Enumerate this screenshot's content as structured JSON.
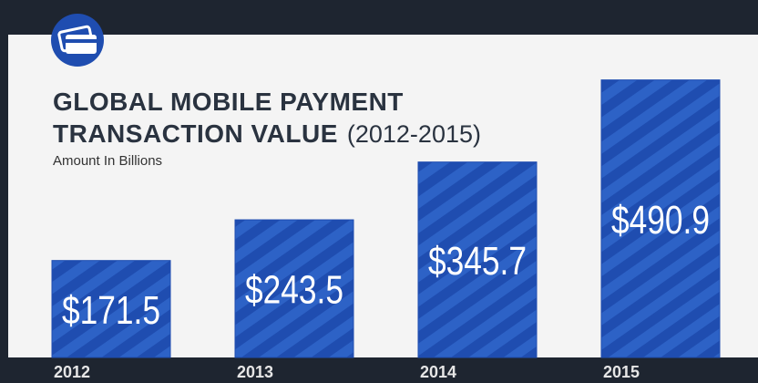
{
  "chart_data": {
    "type": "bar",
    "title_lines": [
      "GLOBAL MOBILE PAYMENT",
      "TRANSACTION VALUE"
    ],
    "title_note": "(2012-2015)",
    "subtitle": "Amount In Billions",
    "categories": [
      "2012",
      "2013",
      "2014",
      "2015"
    ],
    "values": [
      171.5,
      243.5,
      345.7,
      490.9
    ],
    "value_labels": [
      "$171.5",
      "$243.5",
      "$345.7",
      "$490.9"
    ],
    "color": "#1f4db0",
    "ylim": [
      0,
      500
    ],
    "grid": false
  }
}
